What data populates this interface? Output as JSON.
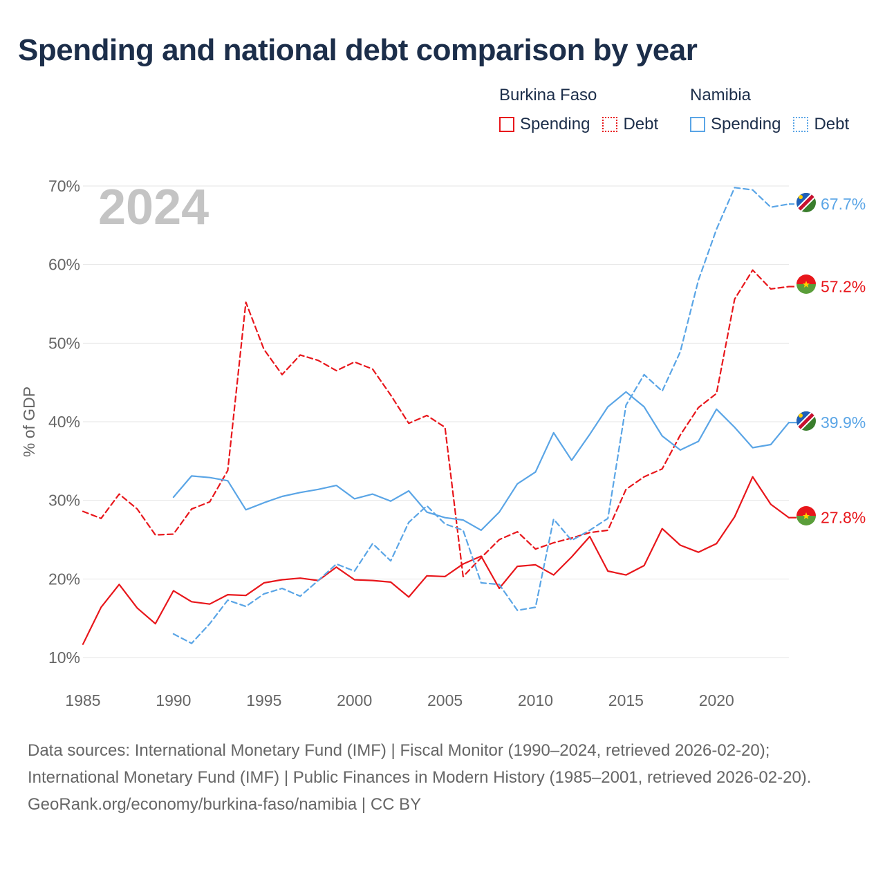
{
  "title": "Spending and national debt comparison by year",
  "legend": {
    "groups": [
      {
        "name": "Burkina Faso",
        "color": "#e8161b",
        "items": [
          {
            "label": "Spending",
            "style": "solid"
          },
          {
            "label": "Debt",
            "style": "dotted"
          }
        ]
      },
      {
        "name": "Namibia",
        "color": "#5aa5e6",
        "items": [
          {
            "label": "Spending",
            "style": "solid"
          },
          {
            "label": "Debt",
            "style": "dotted"
          }
        ]
      }
    ]
  },
  "chart_data": {
    "type": "line",
    "ylabel": "% of GDP",
    "xlabel": "",
    "year_label": "2024",
    "xlim": [
      1985,
      2024
    ],
    "ylim": [
      10,
      70
    ],
    "x_ticks": [
      1985,
      1990,
      1995,
      2000,
      2005,
      2010,
      2015,
      2020
    ],
    "y_ticks": [
      10,
      20,
      30,
      40,
      50,
      60,
      70
    ],
    "y_tick_labels": [
      "10%",
      "20%",
      "30%",
      "40%",
      "50%",
      "60%",
      "70%"
    ],
    "series": [
      {
        "name": "Burkina Faso Spending",
        "country": "Burkina Faso",
        "kind": "spending",
        "dash": false,
        "color": "#e8161b",
        "end_label": "27.8%",
        "x": [
          1985,
          1986,
          1987,
          1988,
          1989,
          1990,
          1991,
          1992,
          1993,
          1994,
          1995,
          1996,
          1997,
          1998,
          1999,
          2000,
          2001,
          2002,
          2003,
          2004,
          2005,
          2006,
          2007,
          2008,
          2009,
          2010,
          2011,
          2012,
          2013,
          2014,
          2015,
          2016,
          2017,
          2018,
          2019,
          2020,
          2021,
          2022,
          2023,
          2024
        ],
        "values": [
          11.7,
          16.4,
          19.3,
          16.3,
          14.3,
          18.5,
          17.1,
          16.8,
          18.0,
          17.9,
          19.5,
          19.9,
          20.1,
          19.8,
          21.5,
          19.9,
          19.8,
          19.6,
          17.7,
          20.4,
          20.3,
          21.9,
          22.9,
          18.8,
          21.6,
          21.8,
          20.5,
          22.8,
          25.4,
          21.0,
          20.5,
          21.7,
          26.4,
          24.3,
          23.4,
          24.5,
          27.9,
          33.0,
          29.5,
          27.8
        ]
      },
      {
        "name": "Burkina Faso Debt",
        "country": "Burkina Faso",
        "kind": "debt",
        "dash": true,
        "color": "#e8161b",
        "end_label": "57.2%",
        "x": [
          1985,
          1986,
          1987,
          1988,
          1989,
          1990,
          1991,
          1992,
          1993,
          1994,
          1995,
          1996,
          1997,
          1998,
          1999,
          2000,
          2001,
          2002,
          2003,
          2004,
          2005,
          2006,
          2007,
          2008,
          2009,
          2010,
          2011,
          2012,
          2013,
          2014,
          2015,
          2016,
          2017,
          2018,
          2019,
          2020,
          2021,
          2022,
          2023,
          2024
        ],
        "values": [
          28.6,
          27.7,
          30.8,
          28.9,
          25.6,
          25.7,
          28.9,
          29.8,
          33.8,
          55.2,
          49.2,
          46.0,
          48.5,
          47.8,
          46.5,
          47.6,
          46.7,
          43.4,
          39.8,
          40.8,
          39.3,
          20.3,
          22.7,
          25.0,
          26.0,
          23.8,
          24.6,
          25.2,
          25.9,
          26.2,
          31.4,
          33.0,
          34.0,
          38.3,
          41.8,
          43.6,
          55.6,
          59.3,
          56.9,
          57.2
        ]
      },
      {
        "name": "Namibia Spending",
        "country": "Namibia",
        "kind": "spending",
        "dash": false,
        "color": "#5aa5e6",
        "end_label": "39.9%",
        "x": [
          1990,
          1991,
          1992,
          1993,
          1994,
          1995,
          1996,
          1997,
          1998,
          1999,
          2000,
          2001,
          2002,
          2003,
          2004,
          2005,
          2006,
          2007,
          2008,
          2009,
          2010,
          2011,
          2012,
          2013,
          2014,
          2015,
          2016,
          2017,
          2018,
          2019,
          2020,
          2021,
          2022,
          2023,
          2024
        ],
        "values": [
          30.4,
          33.1,
          32.9,
          32.5,
          28.8,
          29.7,
          30.5,
          31.0,
          31.4,
          31.9,
          30.2,
          30.8,
          29.9,
          31.2,
          28.5,
          27.8,
          27.5,
          26.2,
          28.5,
          32.1,
          33.6,
          38.6,
          35.1,
          38.4,
          41.9,
          43.8,
          41.9,
          38.2,
          36.4,
          37.5,
          41.6,
          39.3,
          36.7,
          37.1,
          39.9
        ]
      },
      {
        "name": "Namibia Debt",
        "country": "Namibia",
        "kind": "debt",
        "dash": true,
        "color": "#5aa5e6",
        "end_label": "67.7%",
        "x": [
          1990,
          1991,
          1992,
          1993,
          1994,
          1995,
          1996,
          1997,
          1998,
          1999,
          2000,
          2001,
          2002,
          2003,
          2004,
          2005,
          2006,
          2007,
          2008,
          2009,
          2010,
          2011,
          2012,
          2013,
          2014,
          2015,
          2016,
          2017,
          2018,
          2019,
          2020,
          2021,
          2022,
          2023,
          2024
        ],
        "values": [
          13.0,
          11.8,
          14.3,
          17.3,
          16.5,
          18.1,
          18.8,
          17.8,
          19.8,
          21.9,
          21.0,
          24.5,
          22.3,
          27.2,
          29.3,
          27.0,
          26.2,
          19.5,
          19.3,
          16.0,
          16.4,
          27.6,
          24.9,
          26.2,
          27.7,
          42.1,
          46.0,
          43.9,
          48.9,
          58.0,
          64.5,
          69.8,
          69.5,
          67.3,
          67.7
        ]
      }
    ]
  },
  "sources": {
    "line1": "Data sources: International Monetary Fund (IMF) | Fiscal Monitor (1990–2024, retrieved 2026-02-20); International Monetary Fund (IMF) | Public Finances in Modern History (1985–2001, retrieved 2026-02-20).",
    "line2": "GeoRank.org/economy/burkina-faso/namibia | CC BY"
  }
}
